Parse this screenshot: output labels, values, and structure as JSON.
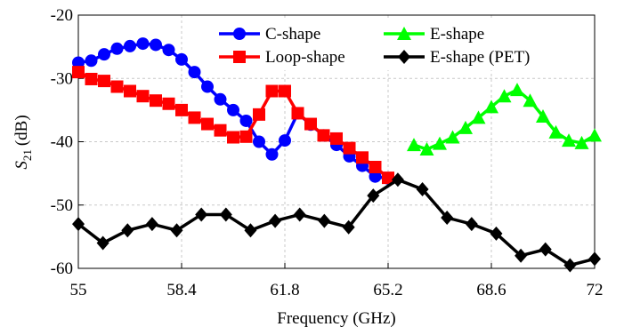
{
  "chart_data": {
    "type": "line",
    "xlabel": "Frequency (GHz)",
    "ylabel": {
      "symbol": "S",
      "subscript": "21",
      "unit": "(dB)"
    },
    "xlim": [
      55,
      72
    ],
    "xticks": [
      55,
      58.4,
      61.8,
      65.2,
      68.6,
      72
    ],
    "ylim": [
      -60,
      -20
    ],
    "yticks": [
      -60,
      -50,
      -40,
      -30,
      -20
    ],
    "grid": true,
    "legend": "top",
    "series": [
      {
        "name": "C-shape",
        "color": "#0000ff",
        "marker": "circle",
        "x": [
          55,
          55.425,
          55.85,
          56.275,
          56.7,
          57.125,
          57.55,
          57.975,
          58.4,
          58.825,
          59.25,
          59.675,
          60.1,
          60.525,
          60.95,
          61.375,
          61.8,
          62.225,
          62.65,
          63.075,
          63.5,
          63.925,
          64.35,
          64.775,
          65.2
        ],
        "values": [
          -27.5,
          -27.2,
          -26.2,
          -25.3,
          -24.9,
          -24.5,
          -24.7,
          -25.5,
          -27,
          -29,
          -31.3,
          -33.3,
          -35,
          -36.7,
          -40,
          -42,
          -39.8,
          -35.5,
          -37.3,
          -39,
          -40.5,
          -42.3,
          -43.8,
          -45.5,
          -45.8
        ]
      },
      {
        "name": "Loop-shape",
        "color": "#ff0000",
        "marker": "square",
        "x": [
          55,
          55.425,
          55.85,
          56.275,
          56.7,
          57.125,
          57.55,
          57.975,
          58.4,
          58.825,
          59.25,
          59.675,
          60.1,
          60.525,
          60.95,
          61.375,
          61.8,
          62.225,
          62.65,
          63.075,
          63.5,
          63.925,
          64.35,
          64.775,
          65.2
        ],
        "values": [
          -29,
          -30.1,
          -30.4,
          -31.3,
          -32,
          -32.8,
          -33.5,
          -34,
          -35,
          -36.2,
          -37.2,
          -38.2,
          -39.3,
          -39.2,
          -35.7,
          -32,
          -32,
          -35.5,
          -37.2,
          -39,
          -39.5,
          -41,
          -42.5,
          -44,
          -45.7
        ]
      },
      {
        "name": "E-shape",
        "color": "#00ff00",
        "marker": "triangle",
        "x": [
          66.05,
          66.475,
          66.9,
          67.325,
          67.75,
          68.175,
          68.6,
          69.025,
          69.45,
          69.875,
          70.3,
          70.725,
          71.15,
          71.575,
          72
        ],
        "values": [
          -40.5,
          -41.2,
          -40.3,
          -39.3,
          -37.8,
          -36.2,
          -34.5,
          -32.8,
          -31.8,
          -33.5,
          -36,
          -38.5,
          -39.8,
          -40.2,
          -39
        ]
      },
      {
        "name": "E-shape (PET)",
        "color": "#000000",
        "marker": "diamond",
        "x": [
          55,
          55.81,
          56.62,
          57.43,
          58.24,
          59.05,
          59.86,
          60.67,
          61.48,
          62.29,
          63.1,
          63.9,
          64.71,
          65.52,
          66.33,
          67.14,
          67.95,
          68.76,
          69.57,
          70.38,
          71.19,
          72
        ],
        "values": [
          -53,
          -56,
          -54,
          -53,
          -54,
          -51.5,
          -51.5,
          -54,
          -52.5,
          -51.5,
          -52.5,
          -53.5,
          -48.5,
          -46,
          -47.5,
          -52,
          -53,
          -54.5,
          -58,
          -57,
          -59.5,
          -58.5
        ]
      }
    ]
  }
}
